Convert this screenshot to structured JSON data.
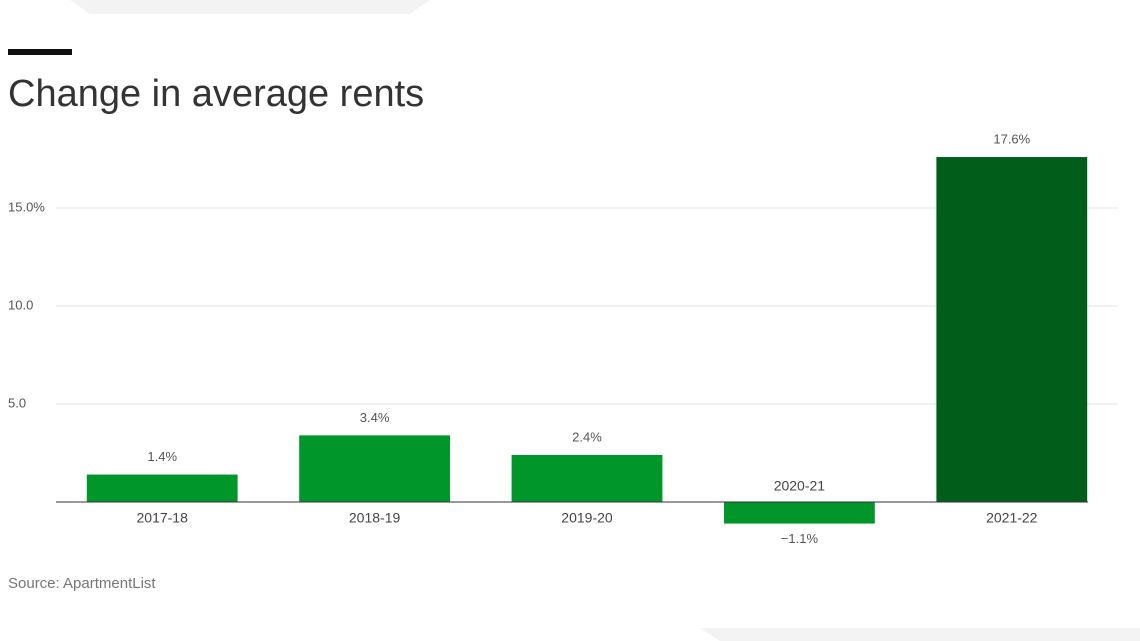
{
  "chart_data": {
    "type": "bar",
    "title": "Change in average rents",
    "categories": [
      "2017-18",
      "2018-19",
      "2019-20",
      "2020-21",
      "2021-22"
    ],
    "values": [
      1.4,
      3.4,
      2.4,
      -1.1,
      17.6
    ],
    "value_labels": [
      "1.4%",
      "3.4%",
      "2.4%",
      "−1.1%",
      "17.6%"
    ],
    "colors": [
      "#00962a",
      "#00962a",
      "#00962a",
      "#00962a",
      "#005e1a"
    ],
    "ylim": [
      -2,
      18
    ],
    "yticks": [
      {
        "value": 5,
        "label": "5.0"
      },
      {
        "value": 10,
        "label": "10.0"
      },
      {
        "value": 15,
        "label": "15.0%"
      }
    ],
    "grid": true,
    "source": "Source: ApartmentList"
  }
}
